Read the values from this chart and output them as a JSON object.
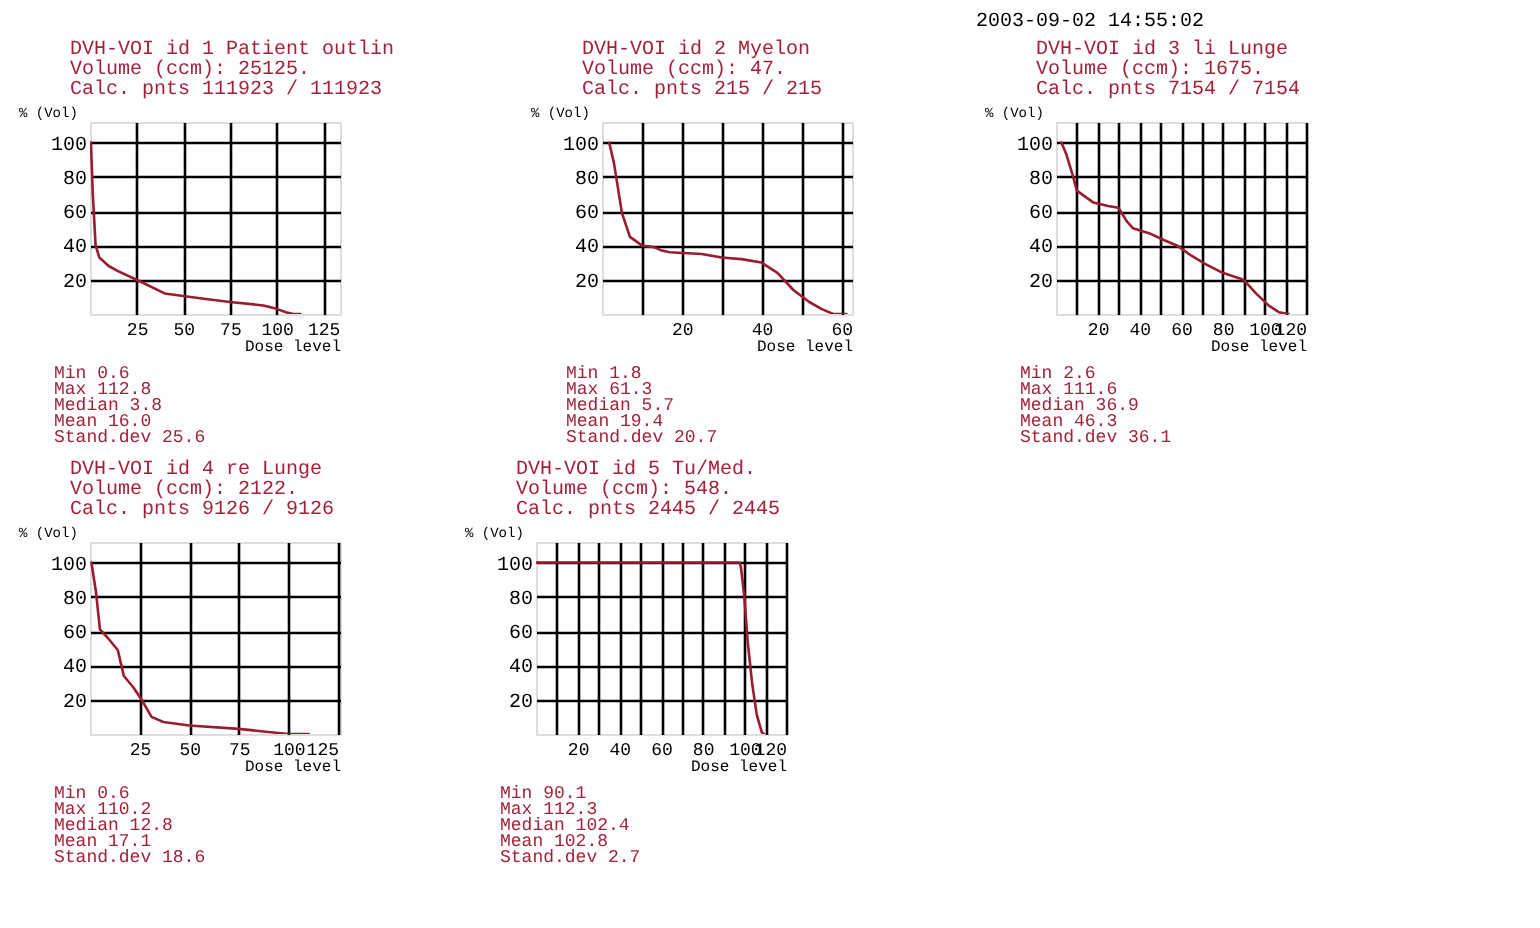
{
  "chart_data": [
    {
      "type": "line",
      "title": "DVH-VOI id 1  Patient outlin",
      "subtitle": "Volume (ccm): 25125.\nCalc. pnts 111923 / 111923",
      "xlabel": "Dose level",
      "ylabel": "% (Vol)",
      "x": [
        0.5,
        1.5,
        3,
        5,
        10,
        15,
        25,
        40,
        60,
        75,
        93,
        100,
        105,
        109,
        112.8
      ],
      "series": [
        {
          "color": "#9b1b30",
          "values": [
            100,
            70,
            40,
            33,
            28,
            25,
            20,
            12,
            9,
            7,
            5,
            3,
            1,
            0,
            0
          ]
        }
      ],
      "xlim": [
        0,
        134
      ],
      "ylim": [
        0,
        112
      ],
      "xticks": [
        25,
        50,
        75,
        100,
        125
      ],
      "yticks": [
        20,
        40,
        60,
        80,
        100
      ],
      "grid": true,
      "annotations": [
        "Min 0.6",
        "Max 112.8",
        "Median 3.8",
        "Mean 16.0",
        "Stand.dev 25.6"
      ]
    },
    {
      "type": "line",
      "title": "DVH-VOI id 2  Myelon",
      "subtitle": "Volume (ccm): 47.\nCalc. pnts 215 / 215",
      "xlabel": "Dose level",
      "ylabel": "% (Vol)",
      "x": [
        1.8,
        3,
        5,
        7,
        10,
        13,
        15,
        17,
        25,
        30,
        35,
        40,
        44,
        48,
        52,
        55,
        58,
        61.3
      ],
      "series": [
        {
          "color": "#9b1b30",
          "values": [
            100,
            88,
            59,
            45,
            40,
            39,
            37,
            36,
            35,
            33,
            32,
            30,
            24,
            14,
            7,
            3,
            0,
            0
          ]
        }
      ],
      "xlim": [
        0,
        62.7
      ],
      "ylim": [
        0,
        112
      ],
      "xticks": [
        {
          "value": 10,
          "label": null
        },
        20,
        {
          "value": 30,
          "label": null
        },
        40,
        {
          "value": 50,
          "label": null
        },
        60
      ],
      "yticks": [
        20,
        40,
        60,
        80,
        100
      ],
      "grid": true,
      "annotations": [
        "Min 1.8",
        "Max 61.3",
        "Median 5.7",
        "Mean 19.4",
        "Stand.dev 20.7"
      ]
    },
    {
      "type": "line",
      "title": "DVH-VOI id 3  li Lunge",
      "subtitle": "Volume (ccm): 1675.\nCalc. pnts 7154 / 7154",
      "xlabel": "Dose level",
      "ylabel": "% (Vol)",
      "x": [
        2.6,
        5,
        8,
        10,
        18,
        25,
        30,
        34,
        37,
        45,
        52,
        58,
        65,
        72,
        80,
        90,
        96,
        102,
        107,
        111.6
      ],
      "series": [
        {
          "color": "#9b1b30",
          "values": [
            100,
            93,
            81,
            72,
            65,
            63,
            62,
            54,
            50,
            47,
            43,
            40,
            34,
            29,
            24,
            20,
            12,
            5,
            1,
            0
          ]
        }
      ],
      "xlim": [
        0,
        120
      ],
      "ylim": [
        0,
        112
      ],
      "xticks": [
        {
          "value": 10,
          "label": null
        },
        20,
        {
          "value": 30,
          "label": null
        },
        40,
        {
          "value": 50,
          "label": null
        },
        60,
        {
          "value": 70,
          "label": null
        },
        80,
        {
          "value": 90,
          "label": null
        },
        100,
        {
          "value": 110,
          "label": null
        },
        120
      ],
      "yticks": [
        20,
        40,
        60,
        80,
        100
      ],
      "grid": true,
      "annotations": [
        "Min 2.6",
        "Max 111.6",
        "Median 36.9",
        "Mean 46.3",
        "Stand.dev 36.1",
        "2003-09-02 14:55:02"
      ]
    },
    {
      "type": "line",
      "title": "DVH-VOI id 4  re Lunge",
      "subtitle": "Volume (ccm): 2122.\nCalc. pnts 9126 / 9126",
      "xlabel": "Dose level",
      "ylabel": "% (Vol)",
      "x": [
        0.7,
        3,
        5,
        9,
        14,
        17,
        22,
        26,
        31,
        37,
        50,
        75,
        100,
        110.2
      ],
      "series": [
        {
          "color": "#9b1b30",
          "values": [
            100,
            83,
            61,
            56,
            49,
            34,
            27,
            20,
            10,
            7,
            5,
            3,
            0,
            0
          ]
        }
      ],
      "xlim": [
        0,
        126
      ],
      "ylim": [
        0,
        112
      ],
      "xticks": [
        25,
        50,
        75,
        100,
        125
      ],
      "yticks": [
        20,
        40,
        60,
        80,
        100
      ],
      "grid": true,
      "annotations": [
        "Min 0.6",
        "Max 110.2",
        "Median 12.8",
        "Mean 17.1",
        "Stand.dev 18.6"
      ]
    },
    {
      "type": "line",
      "title": "DVH-VOI id 5  Tu/Med.",
      "subtitle": "Volume (ccm): 548.\nCalc. pnts 2445 / 2445",
      "xlabel": "Dose level",
      "ylabel": "% (Vol)",
      "x": [
        0,
        50,
        97.8,
        98.4,
        100,
        101.6,
        103.8,
        106,
        108.4,
        109.5
      ],
      "series": [
        {
          "color": "#9b1b30",
          "values": [
            100,
            100,
            100,
            97,
            80,
            54,
            29,
            11,
            1,
            0
          ]
        }
      ],
      "xlim": [
        0,
        120
      ],
      "ylim": [
        0,
        112
      ],
      "xticks": [
        {
          "value": 10,
          "label": null
        },
        20,
        {
          "value": 30,
          "label": null
        },
        40,
        {
          "value": 50,
          "label": null
        },
        60,
        {
          "value": 70,
          "label": null
        },
        80,
        {
          "value": 90,
          "label": null
        },
        100,
        {
          "value": 110,
          "label": null
        },
        120
      ],
      "yticks": [
        20,
        40,
        60,
        80,
        100
      ],
      "grid": true,
      "annotations": [
        "Min 90.1",
        "Max 112.3",
        "Median 102.4",
        "Mean 102.8",
        "Stand.dev 2.7"
      ]
    }
  ]
}
